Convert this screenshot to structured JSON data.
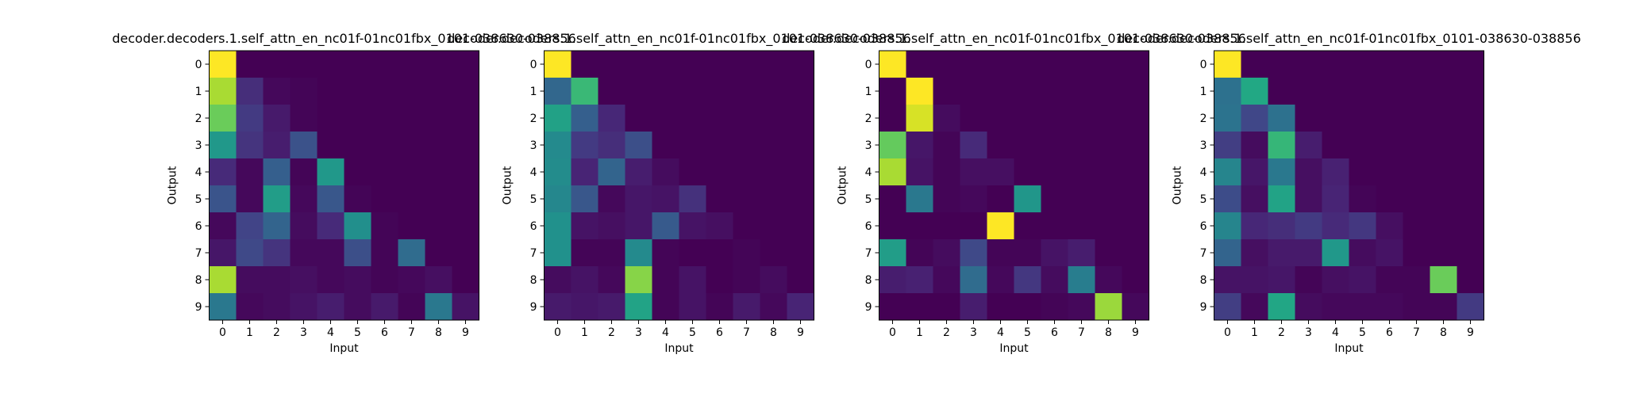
{
  "figure": {
    "background": "#ffffff",
    "colormap": "viridis"
  },
  "chart_data": [
    {
      "type": "heatmap",
      "title": "decoder.decoders.1.self_attn_en_nc01f-01nc01fbx_0101-038630-038856",
      "xlabel": "Input",
      "ylabel": "Output",
      "x_ticks": [
        "0",
        "1",
        "2",
        "3",
        "4",
        "5",
        "6",
        "7",
        "8",
        "9"
      ],
      "y_ticks": [
        "0",
        "1",
        "2",
        "3",
        "4",
        "5",
        "6",
        "7",
        "8",
        "9"
      ],
      "vmin": 0,
      "vmax": 1,
      "values": [
        [
          1.0,
          0,
          0,
          0,
          0,
          0,
          0,
          0,
          0,
          0
        ],
        [
          0.87,
          0.13,
          0.02,
          0.01,
          0,
          0,
          0,
          0,
          0,
          0
        ],
        [
          0.77,
          0.17,
          0.07,
          0.01,
          0,
          0,
          0,
          0,
          0,
          0
        ],
        [
          0.53,
          0.15,
          0.08,
          0.25,
          0,
          0,
          0,
          0,
          0,
          0
        ],
        [
          0.12,
          0.02,
          0.3,
          0.01,
          0.53,
          0,
          0,
          0,
          0,
          0
        ],
        [
          0.26,
          0.02,
          0.55,
          0.02,
          0.27,
          0.01,
          0,
          0,
          0,
          0
        ],
        [
          0.02,
          0.2,
          0.32,
          0.03,
          0.12,
          0.49,
          0.01,
          0,
          0,
          0
        ],
        [
          0.06,
          0.22,
          0.15,
          0.02,
          0.02,
          0.24,
          0.01,
          0.35,
          0,
          0
        ],
        [
          0.87,
          0.03,
          0.03,
          0.04,
          0.02,
          0.03,
          0.01,
          0.02,
          0.04,
          0
        ],
        [
          0.4,
          0.02,
          0.03,
          0.05,
          0.08,
          0.03,
          0.07,
          0.01,
          0.4,
          0.05
        ]
      ]
    },
    {
      "type": "heatmap",
      "title": "decoder.decoders.1.self_attn_en_nc01f-01nc01fbx_0101-038630-038856",
      "xlabel": "Input",
      "ylabel": "Output",
      "x_ticks": [
        "0",
        "1",
        "2",
        "3",
        "4",
        "5",
        "6",
        "7",
        "8",
        "9"
      ],
      "y_ticks": [
        "0",
        "1",
        "2",
        "3",
        "4",
        "5",
        "6",
        "7",
        "8",
        "9"
      ],
      "vmin": 0,
      "vmax": 1,
      "values": [
        [
          1.0,
          0,
          0,
          0,
          0,
          0,
          0,
          0,
          0,
          0
        ],
        [
          0.33,
          0.67,
          0,
          0,
          0,
          0,
          0,
          0,
          0,
          0
        ],
        [
          0.57,
          0.3,
          0.11,
          0,
          0,
          0,
          0,
          0,
          0,
          0
        ],
        [
          0.47,
          0.17,
          0.13,
          0.24,
          0,
          0,
          0,
          0,
          0,
          0
        ],
        [
          0.48,
          0.1,
          0.32,
          0.08,
          0.03,
          0,
          0,
          0,
          0,
          0
        ],
        [
          0.46,
          0.27,
          0.02,
          0.06,
          0.05,
          0.14,
          0,
          0,
          0,
          0
        ],
        [
          0.5,
          0.05,
          0.04,
          0.06,
          0.28,
          0.05,
          0.04,
          0,
          0,
          0
        ],
        [
          0.5,
          0.01,
          0.01,
          0.47,
          0.01,
          0,
          0,
          0.01,
          0,
          0
        ],
        [
          0.03,
          0.05,
          0.02,
          0.82,
          0.01,
          0.05,
          0,
          0.01,
          0.03,
          0
        ],
        [
          0.07,
          0.06,
          0.07,
          0.58,
          0.01,
          0.05,
          0.01,
          0.07,
          0.02,
          0.1
        ]
      ]
    },
    {
      "type": "heatmap",
      "title": "decoder.decoders.1.self_attn_en_nc01f-01nc01fbx_0101-038630-038856",
      "xlabel": "Input",
      "ylabel": "Output",
      "x_ticks": [
        "0",
        "1",
        "2",
        "3",
        "4",
        "5",
        "6",
        "7",
        "8",
        "9"
      ],
      "y_ticks": [
        "0",
        "1",
        "2",
        "3",
        "4",
        "5",
        "6",
        "7",
        "8",
        "9"
      ],
      "vmin": 0,
      "vmax": 1,
      "values": [
        [
          1.0,
          0,
          0,
          0,
          0,
          0,
          0,
          0,
          0,
          0
        ],
        [
          0,
          1.0,
          0,
          0,
          0,
          0,
          0,
          0,
          0,
          0
        ],
        [
          0,
          0.94,
          0.03,
          0,
          0,
          0,
          0,
          0,
          0,
          0
        ],
        [
          0.76,
          0.06,
          0.01,
          0.12,
          0,
          0,
          0,
          0,
          0,
          0
        ],
        [
          0.87,
          0.05,
          0.01,
          0.04,
          0.04,
          0,
          0,
          0,
          0,
          0
        ],
        [
          0,
          0.4,
          0.01,
          0.02,
          0,
          0.52,
          0,
          0,
          0,
          0
        ],
        [
          0,
          0,
          0,
          0,
          1.0,
          0,
          0,
          0,
          0,
          0
        ],
        [
          0.55,
          0.01,
          0.03,
          0.22,
          0.01,
          0.01,
          0.05,
          0.08,
          0,
          0
        ],
        [
          0.08,
          0.09,
          0.02,
          0.35,
          0.02,
          0.16,
          0.03,
          0.42,
          0.02,
          0
        ],
        [
          0,
          0,
          0,
          0.08,
          0,
          0,
          0.01,
          0.02,
          0.85,
          0.02
        ]
      ]
    },
    {
      "type": "heatmap",
      "title": "decoder.decoders.1.self_attn_en_nc01f-01nc01fbx_0101-038630-038856",
      "xlabel": "Input",
      "ylabel": "Output",
      "x_ticks": [
        "0",
        "1",
        "2",
        "3",
        "4",
        "5",
        "6",
        "7",
        "8",
        "9"
      ],
      "y_ticks": [
        "0",
        "1",
        "2",
        "3",
        "4",
        "5",
        "6",
        "7",
        "8",
        "9"
      ],
      "vmin": 0,
      "vmax": 1,
      "values": [
        [
          1.0,
          0,
          0,
          0,
          0,
          0,
          0,
          0,
          0,
          0
        ],
        [
          0.37,
          0.6,
          0,
          0,
          0,
          0,
          0,
          0,
          0,
          0
        ],
        [
          0.38,
          0.21,
          0.37,
          0,
          0,
          0,
          0,
          0,
          0,
          0
        ],
        [
          0.18,
          0.03,
          0.66,
          0.08,
          0,
          0,
          0,
          0,
          0,
          0
        ],
        [
          0.45,
          0.06,
          0.4,
          0.04,
          0.09,
          0,
          0,
          0,
          0,
          0
        ],
        [
          0.23,
          0.04,
          0.58,
          0.04,
          0.1,
          0.01,
          0,
          0,
          0,
          0
        ],
        [
          0.45,
          0.11,
          0.13,
          0.17,
          0.12,
          0.16,
          0.04,
          0,
          0,
          0
        ],
        [
          0.32,
          0.04,
          0.07,
          0.07,
          0.53,
          0.03,
          0.05,
          0,
          0,
          0
        ],
        [
          0.05,
          0.05,
          0.06,
          0.01,
          0.04,
          0.05,
          0.01,
          0.01,
          0.77,
          0
        ],
        [
          0.18,
          0.02,
          0.59,
          0.03,
          0.02,
          0.02,
          0.02,
          0.01,
          0.01,
          0.17
        ]
      ]
    }
  ]
}
